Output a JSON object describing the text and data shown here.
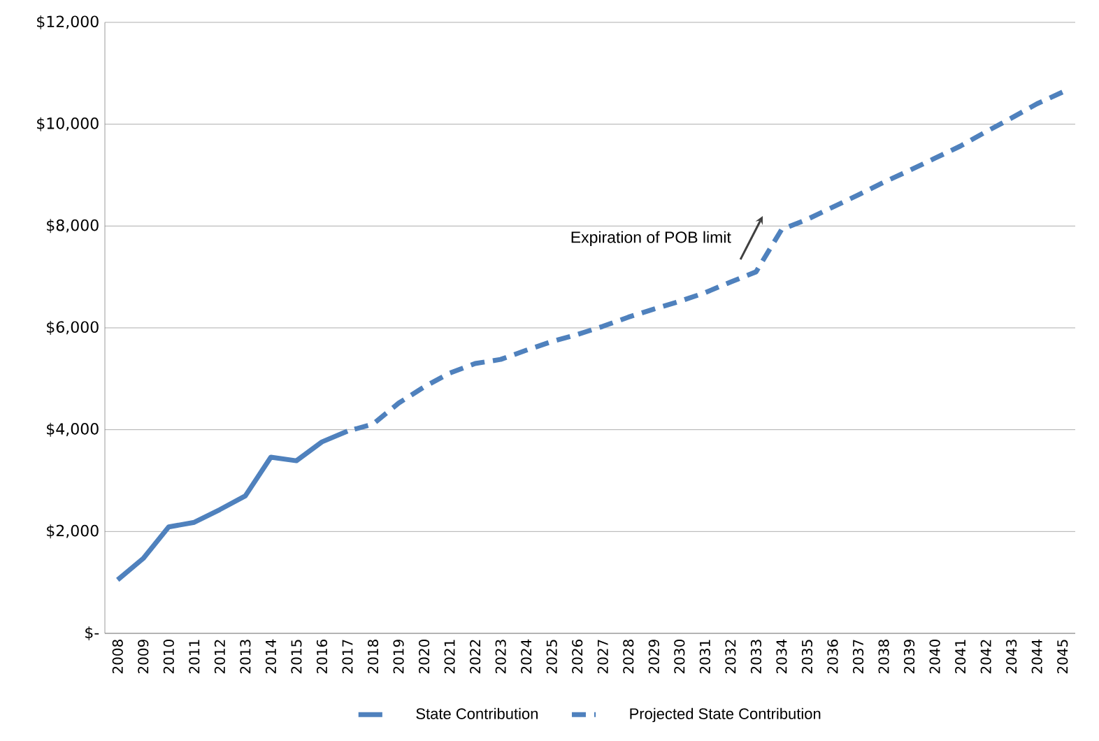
{
  "chart_data": {
    "type": "line",
    "categories": [
      "2008",
      "2009",
      "2010",
      "2011",
      "2012",
      "2013",
      "2014",
      "2015",
      "2016",
      "2017",
      "2018",
      "2019",
      "2020",
      "2021",
      "2022",
      "2023",
      "2024",
      "2025",
      "2026",
      "2027",
      "2028",
      "2029",
      "2030",
      "2031",
      "2032",
      "2033",
      "2034",
      "2035",
      "2036",
      "2037",
      "2038",
      "2039",
      "2040",
      "2041",
      "2042",
      "2043",
      "2044",
      "2045"
    ],
    "series": [
      {
        "name": "State Contribution",
        "color": "#4f81bd",
        "line_style": "solid",
        "values": [
          1050,
          1470,
          2090,
          2180,
          2430,
          2700,
          3460,
          3390,
          3760,
          3970,
          null,
          null,
          null,
          null,
          null,
          null,
          null,
          null,
          null,
          null,
          null,
          null,
          null,
          null,
          null,
          null,
          null,
          null,
          null,
          null,
          null,
          null,
          null,
          null,
          null,
          null,
          null,
          null
        ]
      },
      {
        "name": "Projected State Contribution",
        "color": "#4f81bd",
        "line_style": "dashed",
        "values": [
          null,
          null,
          null,
          null,
          null,
          null,
          null,
          null,
          null,
          3970,
          4110,
          4520,
          4840,
          5110,
          5300,
          5380,
          5560,
          5730,
          5870,
          6030,
          6210,
          6370,
          6520,
          6690,
          6900,
          7100,
          7930,
          8130,
          8370,
          8610,
          8860,
          9090,
          9330,
          9570,
          9850,
          10120,
          10400,
          10630
        ]
      }
    ],
    "ylim": [
      0,
      12000
    ],
    "yticks": [
      {
        "value": 0,
        "label": "$-"
      },
      {
        "value": 2000,
        "label": "$2,000"
      },
      {
        "value": 4000,
        "label": "$4,000"
      },
      {
        "value": 6000,
        "label": "$6,000"
      },
      {
        "value": 8000,
        "label": "$8,000"
      },
      {
        "value": 10000,
        "label": "$10,000"
      },
      {
        "value": 12000,
        "label": "$12,000"
      }
    ],
    "grid": "y",
    "legend": "bottom",
    "marker": "none",
    "annotations": [
      "Expiration of POB limit"
    ]
  }
}
